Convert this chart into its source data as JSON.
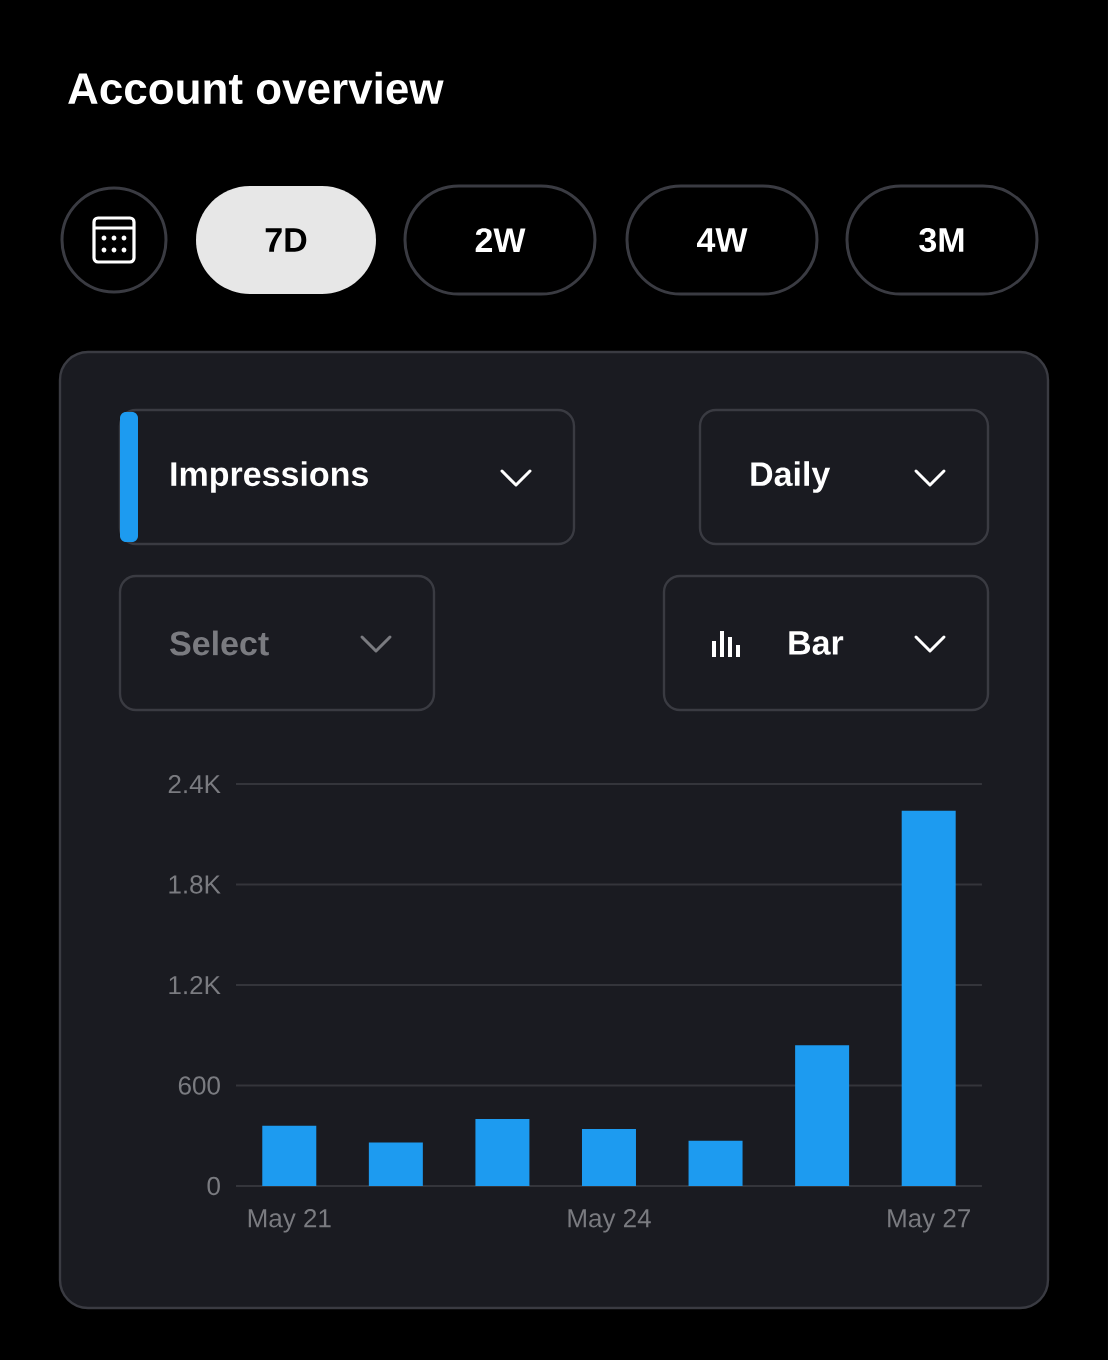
{
  "chart_data": {
    "type": "bar",
    "title": "Account overview",
    "annotations": [
      "7D",
      "2W",
      "4W",
      "3M",
      "Impressions",
      "Daily",
      "Select",
      "Bar"
    ],
    "categories": [
      "May 21",
      null,
      null,
      "May 24",
      null,
      null,
      "May 27"
    ],
    "values": [
      360,
      260,
      400,
      340,
      270,
      840,
      2240
    ],
    "color": "#1d9bf0",
    "ylim": [
      0,
      2400
    ],
    "yticks": [
      0,
      600,
      {
        "value": 1200,
        "label": "1.2K"
      },
      {
        "value": 1800,
        "label": "1.8K"
      },
      {
        "value": 2400,
        "label": "2.4K"
      }
    ],
    "grid": "y"
  }
}
